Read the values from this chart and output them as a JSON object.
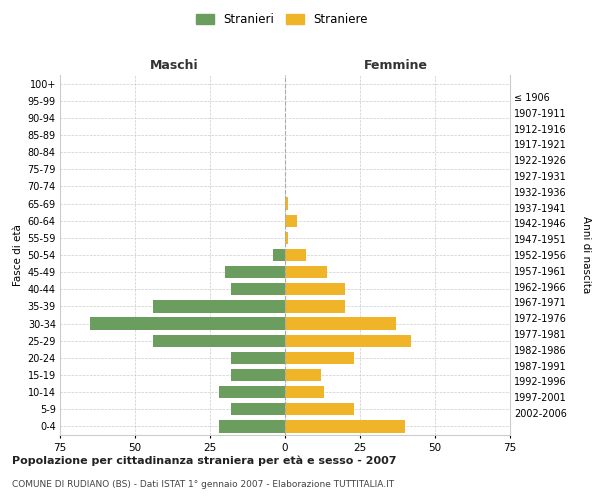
{
  "age_groups": [
    "0-4",
    "5-9",
    "10-14",
    "15-19",
    "20-24",
    "25-29",
    "30-34",
    "35-39",
    "40-44",
    "45-49",
    "50-54",
    "55-59",
    "60-64",
    "65-69",
    "70-74",
    "75-79",
    "80-84",
    "85-89",
    "90-94",
    "95-99",
    "100+"
  ],
  "birth_years": [
    "2002-2006",
    "1997-2001",
    "1992-1996",
    "1987-1991",
    "1982-1986",
    "1977-1981",
    "1972-1976",
    "1967-1971",
    "1962-1966",
    "1957-1961",
    "1952-1956",
    "1947-1951",
    "1942-1946",
    "1937-1941",
    "1932-1936",
    "1927-1931",
    "1922-1926",
    "1917-1921",
    "1912-1916",
    "1907-1911",
    "≤ 1906"
  ],
  "males": [
    22,
    18,
    22,
    18,
    18,
    44,
    65,
    44,
    18,
    20,
    4,
    0,
    0,
    0,
    0,
    0,
    0,
    0,
    0,
    0,
    0
  ],
  "females": [
    40,
    23,
    13,
    12,
    23,
    42,
    37,
    20,
    20,
    14,
    7,
    1,
    4,
    1,
    0,
    0,
    0,
    0,
    0,
    0,
    0
  ],
  "male_color": "#6b9e5e",
  "female_color": "#f0b429",
  "xlim": 75,
  "title": "Popolazione per cittadinanza straniera per età e sesso - 2007",
  "subtitle": "COMUNE DI RUDIANO (BS) - Dati ISTAT 1° gennaio 2007 - Elaborazione TUTTITALIA.IT",
  "ylabel_left": "Fasce di età",
  "ylabel_right": "Anni di nascita",
  "xlabel_left": "Maschi",
  "xlabel_right": "Femmine",
  "legend_male": "Stranieri",
  "legend_female": "Straniere",
  "bg_color": "#ffffff",
  "grid_color": "#cccccc",
  "dashed_color": "#aaaaaa"
}
